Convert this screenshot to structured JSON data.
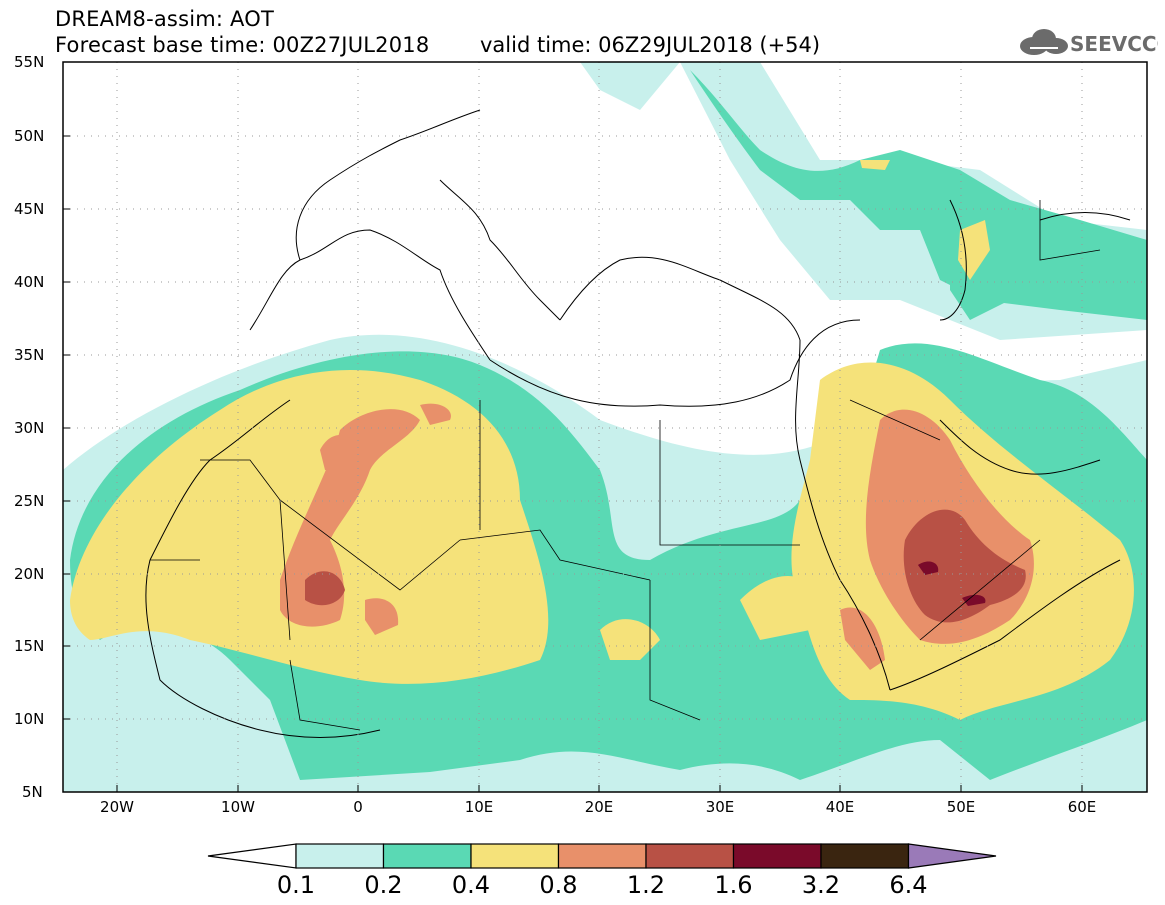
{
  "header": {
    "model_title": "DREAM8-assim: AOT",
    "base_time": "Forecast base time: 00Z27JUL2018",
    "valid_time": "valid time: 06Z29JUL2018 (+54)",
    "logo_text": "SEEVCCC",
    "logo_icon": "cloud-icon"
  },
  "map": {
    "lat_labels": [
      "55N",
      "50N",
      "45N",
      "40N",
      "35N",
      "30N",
      "25N",
      "20N",
      "15N",
      "10N",
      "5N"
    ],
    "lon_labels": [
      "20W",
      "10W",
      "0",
      "10E",
      "20E",
      "30E",
      "40E",
      "50E",
      "60E"
    ],
    "lat_range": [
      5,
      55
    ],
    "lon_range": [
      -25,
      65
    ],
    "grid": "dotted"
  },
  "colorbar": {
    "levels": [
      "0.1",
      "0.2",
      "0.4",
      "0.8",
      "1.2",
      "1.6",
      "3.2",
      "6.4"
    ],
    "colors": [
      "#ffffff",
      "#c8f0ec",
      "#5ad9b4",
      "#f5e27a",
      "#e8906a",
      "#b85145",
      "#7a0a2a",
      "#3a2510",
      "#9a7ab8"
    ]
  }
}
